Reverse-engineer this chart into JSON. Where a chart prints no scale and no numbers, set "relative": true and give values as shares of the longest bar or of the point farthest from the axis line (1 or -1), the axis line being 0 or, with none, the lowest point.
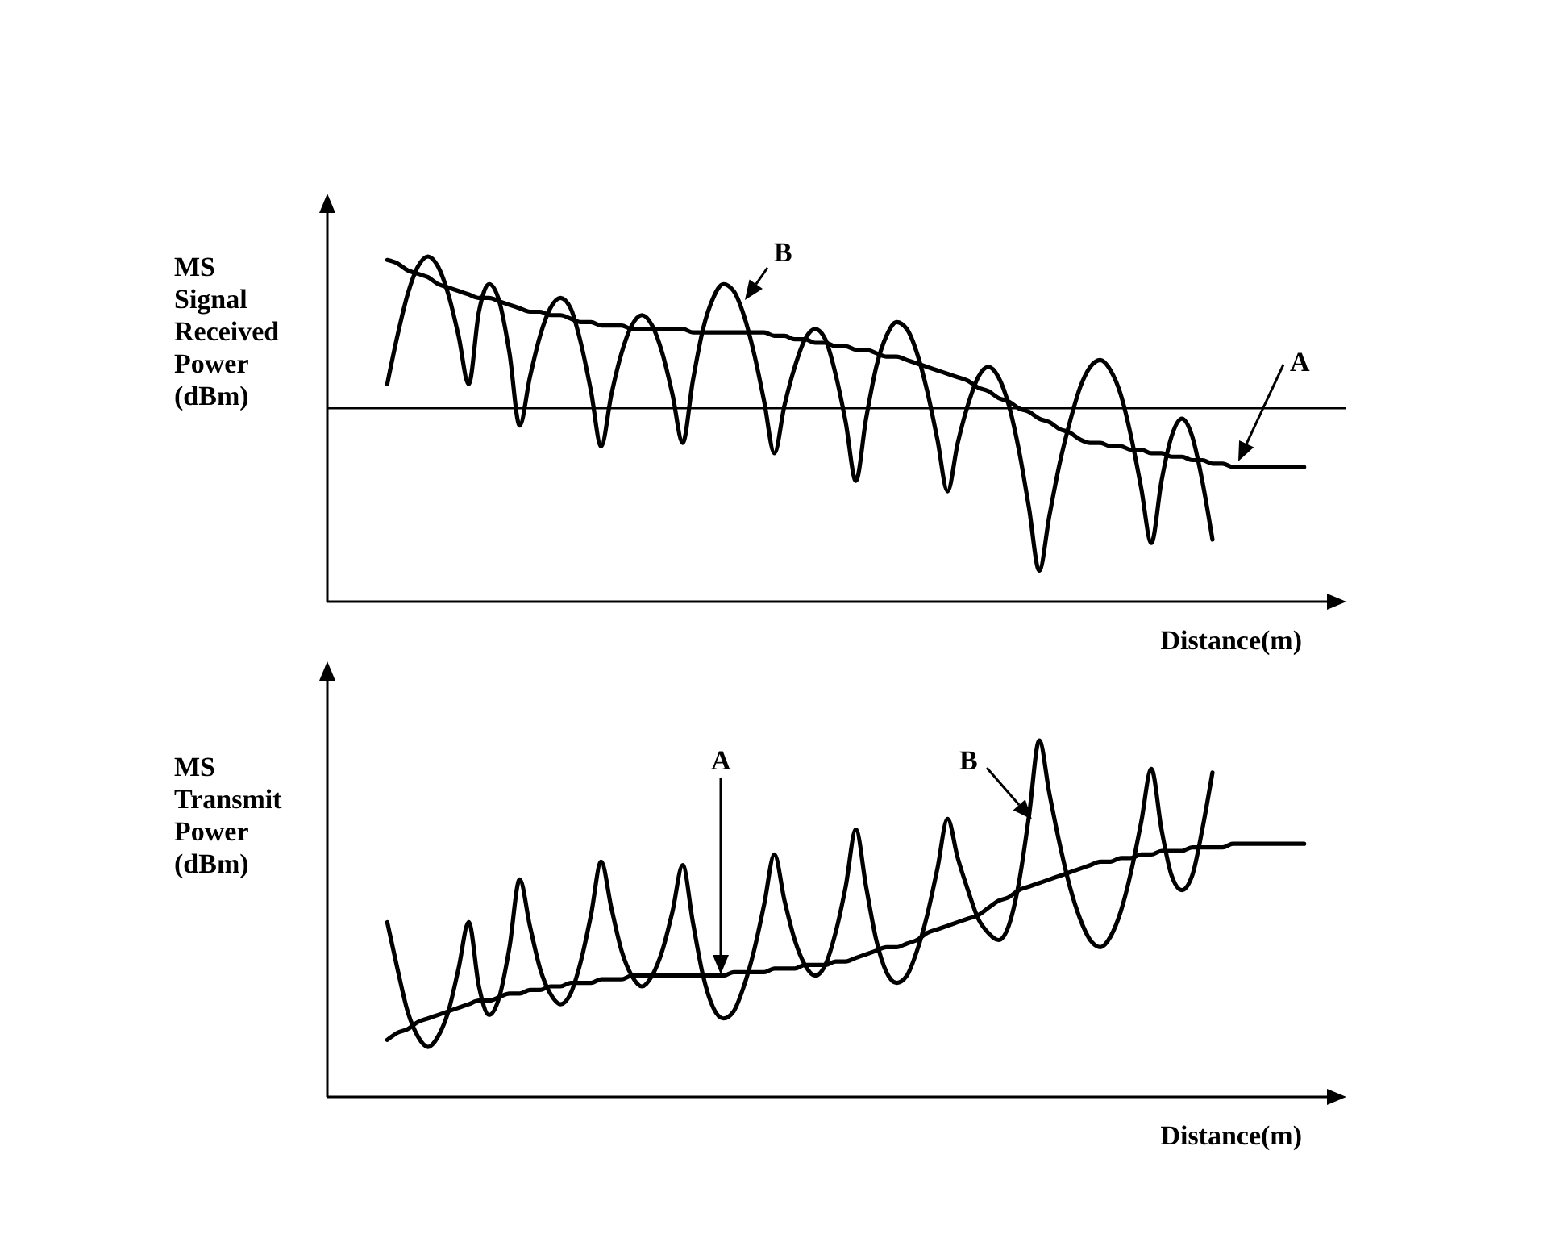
{
  "chart_data": [
    {
      "type": "line",
      "relative": true,
      "ylabel": "MS Signal Received Power (dBm)",
      "xlabel": "Distance(m)",
      "tick_labels": false,
      "annotations": [
        "B",
        "A"
      ],
      "ref_lines": [
        {
          "axis": "y",
          "value": 0.56,
          "color": "#000000"
        }
      ],
      "categories": [
        null,
        null,
        null,
        null,
        null,
        null,
        null,
        null,
        null,
        null,
        null,
        null,
        null,
        null,
        null,
        null,
        null,
        null,
        null,
        null,
        null,
        null,
        null,
        null,
        null,
        null,
        null,
        null,
        null,
        null,
        null,
        null,
        null,
        null,
        null,
        null,
        null,
        null,
        null,
        null,
        null,
        null,
        null,
        null,
        null,
        null,
        null,
        null,
        null,
        null,
        null,
        null,
        null,
        null,
        null,
        null,
        null,
        null,
        null,
        null,
        null,
        null,
        null,
        null,
        null,
        null,
        null,
        null,
        null,
        null,
        null,
        null,
        null,
        null,
        null,
        null,
        null,
        null,
        null,
        null,
        null,
        null,
        null,
        null,
        null,
        null,
        null,
        null,
        null,
        null,
        null
      ],
      "series": [
        {
          "color": "#000000",
          "values": [
            0.63,
            0.77,
            0.89,
            0.97,
            1.0,
            0.97,
            0.89,
            0.77,
            0.63,
            0.84,
            0.92,
            0.87,
            0.72,
            0.51,
            0.65,
            0.77,
            0.85,
            0.88,
            0.85,
            0.75,
            0.61,
            0.45,
            0.6,
            0.72,
            0.8,
            0.83,
            0.8,
            0.72,
            0.6,
            0.46,
            0.64,
            0.79,
            0.88,
            0.92,
            0.9,
            0.83,
            0.72,
            0.58,
            0.43,
            0.57,
            0.68,
            0.76,
            0.79,
            0.76,
            0.66,
            0.52,
            0.35,
            0.53,
            0.68,
            0.77,
            0.81,
            0.79,
            0.72,
            0.61,
            0.47,
            0.32,
            0.46,
            0.57,
            0.65,
            0.68,
            0.65,
            0.57,
            0.44,
            0.27,
            0.09,
            0.25,
            0.4,
            0.52,
            0.62,
            0.68,
            0.7,
            0.67,
            0.6,
            0.48,
            0.33,
            0.17,
            0.35,
            0.48,
            0.53,
            0.48,
            0.35,
            0.18,
            null,
            null,
            null,
            null,
            null,
            null,
            null,
            null,
            null
          ]
        },
        {
          "color": "#000000",
          "values": [
            0.99,
            0.98,
            0.96,
            0.95,
            0.94,
            0.92,
            0.91,
            0.9,
            0.89,
            0.88,
            0.88,
            0.87,
            0.86,
            0.85,
            0.84,
            0.84,
            0.83,
            0.83,
            0.82,
            0.81,
            0.81,
            0.8,
            0.8,
            0.8,
            0.79,
            0.79,
            0.79,
            0.79,
            0.79,
            0.79,
            0.78,
            0.78,
            0.78,
            0.78,
            0.78,
            0.78,
            0.78,
            0.78,
            0.77,
            0.77,
            0.76,
            0.76,
            0.75,
            0.75,
            0.74,
            0.74,
            0.73,
            0.73,
            0.72,
            0.71,
            0.71,
            0.7,
            0.69,
            0.68,
            0.67,
            0.66,
            0.65,
            0.64,
            0.62,
            0.61,
            0.59,
            0.58,
            0.56,
            0.55,
            0.53,
            0.52,
            0.5,
            0.49,
            0.47,
            0.46,
            0.46,
            0.45,
            0.45,
            0.44,
            0.44,
            0.43,
            0.43,
            0.42,
            0.42,
            0.41,
            0.41,
            0.4,
            0.4,
            0.39,
            0.39,
            0.39,
            0.39,
            0.39,
            0.39,
            0.39,
            0.39
          ]
        }
      ]
    },
    {
      "type": "line",
      "relative": true,
      "ylabel": "MS Transmit Power (dBm)",
      "xlabel": "Distance(m)",
      "tick_labels": false,
      "annotations": [
        "A",
        "B"
      ],
      "categories": [
        null,
        null,
        null,
        null,
        null,
        null,
        null,
        null,
        null,
        null,
        null,
        null,
        null,
        null,
        null,
        null,
        null,
        null,
        null,
        null,
        null,
        null,
        null,
        null,
        null,
        null,
        null,
        null,
        null,
        null,
        null,
        null,
        null,
        null,
        null,
        null,
        null,
        null,
        null,
        null,
        null,
        null,
        null,
        null,
        null,
        null,
        null,
        null,
        null,
        null,
        null,
        null,
        null,
        null,
        null,
        null,
        null,
        null,
        null,
        null,
        null,
        null,
        null,
        null,
        null,
        null,
        null,
        null,
        null,
        null,
        null,
        null,
        null,
        null,
        null,
        null,
        null,
        null,
        null,
        null,
        null,
        null,
        null,
        null,
        null,
        null,
        null,
        null,
        null,
        null,
        null
      ],
      "series": [
        {
          "color": "#000000",
          "values": [
            0.49,
            0.36,
            0.24,
            0.17,
            0.14,
            0.17,
            0.24,
            0.36,
            0.49,
            0.31,
            0.23,
            0.28,
            0.42,
            0.61,
            0.48,
            0.36,
            0.29,
            0.26,
            0.29,
            0.38,
            0.51,
            0.66,
            0.53,
            0.41,
            0.34,
            0.31,
            0.34,
            0.41,
            0.52,
            0.65,
            0.49,
            0.34,
            0.25,
            0.22,
            0.24,
            0.31,
            0.41,
            0.54,
            0.68,
            0.55,
            0.44,
            0.37,
            0.34,
            0.37,
            0.46,
            0.59,
            0.75,
            0.59,
            0.44,
            0.35,
            0.32,
            0.34,
            0.41,
            0.51,
            0.64,
            0.78,
            0.67,
            0.58,
            0.5,
            0.46,
            0.44,
            0.48,
            0.6,
            0.79,
            1.0,
            0.85,
            0.71,
            0.59,
            0.5,
            0.44,
            0.42,
            0.45,
            0.52,
            0.63,
            0.77,
            0.92,
            0.75,
            0.62,
            0.58,
            0.62,
            0.75,
            0.91,
            null,
            null,
            null,
            null,
            null,
            null,
            null,
            null,
            null
          ]
        },
        {
          "color": "#000000",
          "values": [
            0.16,
            0.18,
            0.19,
            0.21,
            0.22,
            0.23,
            0.24,
            0.25,
            0.26,
            0.27,
            0.27,
            0.28,
            0.29,
            0.29,
            0.3,
            0.3,
            0.31,
            0.31,
            0.32,
            0.32,
            0.32,
            0.33,
            0.33,
            0.33,
            0.34,
            0.34,
            0.34,
            0.34,
            0.34,
            0.34,
            0.34,
            0.34,
            0.34,
            0.34,
            0.35,
            0.35,
            0.35,
            0.35,
            0.36,
            0.36,
            0.36,
            0.37,
            0.37,
            0.37,
            0.38,
            0.38,
            0.39,
            0.4,
            0.41,
            0.42,
            0.42,
            0.43,
            0.44,
            0.46,
            0.47,
            0.48,
            0.49,
            0.5,
            0.51,
            0.53,
            0.55,
            0.56,
            0.58,
            0.59,
            0.6,
            0.61,
            0.62,
            0.63,
            0.64,
            0.65,
            0.66,
            0.66,
            0.67,
            0.67,
            0.68,
            0.68,
            0.69,
            0.69,
            0.69,
            0.7,
            0.7,
            0.7,
            0.7,
            0.71,
            0.71,
            0.71,
            0.71,
            0.71,
            0.71,
            0.71,
            0.71
          ]
        }
      ]
    }
  ]
}
